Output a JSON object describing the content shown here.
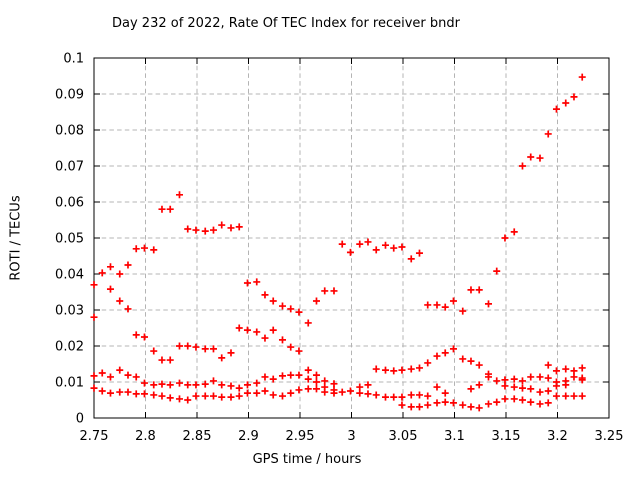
{
  "colors": {
    "background": "#ffffff",
    "border": "#000000",
    "grid": "#b4b4b4",
    "text": "#000000"
  },
  "chart_data": {
    "type": "scatter",
    "title": "Day 232 of 2022, Rate Of TEC Index for receiver bndr",
    "xlabel": "GPS time / hours",
    "ylabel": "ROTI / TECUs",
    "xlim": [
      2.75,
      3.25
    ],
    "ylim": [
      0,
      0.1
    ],
    "xticks": [
      2.75,
      2.8,
      2.85,
      2.9,
      2.95,
      3,
      3.05,
      3.1,
      3.15,
      3.2,
      3.25
    ],
    "xtick_labels": [
      "2.75",
      "2.8",
      "2.85",
      "2.9",
      "2.95",
      "3",
      "3.05",
      "3.1",
      "3.15",
      "3.2",
      "3.25"
    ],
    "yticks": [
      0,
      0.01,
      0.02,
      0.03,
      0.04,
      0.05,
      0.06,
      0.07,
      0.08,
      0.09,
      0.1
    ],
    "ytick_labels": [
      "0",
      "0.01",
      "0.02",
      "0.03",
      "0.04",
      "0.05",
      "0.06",
      "0.07",
      "0.08",
      "0.09",
      "0.1"
    ],
    "grid": true,
    "legend": "none",
    "marker": {
      "shape": "plus",
      "color": "#ff0000"
    },
    "series": [
      {
        "name": "ROTI",
        "points": [
          [
            2.75,
            0.037
          ],
          [
            2.75,
            0.028
          ],
          [
            2.75,
            0.0117
          ],
          [
            2.75,
            0.0083
          ],
          [
            2.758,
            0.0403
          ],
          [
            2.758,
            0.0125
          ],
          [
            2.758,
            0.0075
          ],
          [
            2.766,
            0.042
          ],
          [
            2.766,
            0.0358
          ],
          [
            2.766,
            0.0114
          ],
          [
            2.766,
            0.0069
          ],
          [
            2.775,
            0.04
          ],
          [
            2.775,
            0.0325
          ],
          [
            2.775,
            0.0133
          ],
          [
            2.775,
            0.0072
          ],
          [
            2.783,
            0.0425
          ],
          [
            2.783,
            0.0303
          ],
          [
            2.783,
            0.0119
          ],
          [
            2.783,
            0.0072
          ],
          [
            2.791,
            0.047
          ],
          [
            2.791,
            0.0231
          ],
          [
            2.791,
            0.0114
          ],
          [
            2.791,
            0.0067
          ],
          [
            2.799,
            0.0472
          ],
          [
            2.799,
            0.0225
          ],
          [
            2.799,
            0.0097
          ],
          [
            2.799,
            0.0067
          ],
          [
            2.808,
            0.0467
          ],
          [
            2.808,
            0.0186
          ],
          [
            2.808,
            0.0092
          ],
          [
            2.808,
            0.0064
          ],
          [
            2.816,
            0.058
          ],
          [
            2.816,
            0.0161
          ],
          [
            2.816,
            0.0094
          ],
          [
            2.816,
            0.0061
          ],
          [
            2.824,
            0.058
          ],
          [
            2.824,
            0.0161
          ],
          [
            2.824,
            0.0092
          ],
          [
            2.824,
            0.0056
          ],
          [
            2.833,
            0.062
          ],
          [
            2.833,
            0.02
          ],
          [
            2.833,
            0.0097
          ],
          [
            2.833,
            0.0053
          ],
          [
            2.841,
            0.0525
          ],
          [
            2.841,
            0.02
          ],
          [
            2.841,
            0.0092
          ],
          [
            2.841,
            0.005
          ],
          [
            2.849,
            0.0522
          ],
          [
            2.849,
            0.0197
          ],
          [
            2.849,
            0.0092
          ],
          [
            2.849,
            0.0061
          ],
          [
            2.858,
            0.0519
          ],
          [
            2.858,
            0.0192
          ],
          [
            2.858,
            0.0094
          ],
          [
            2.858,
            0.0061
          ],
          [
            2.866,
            0.0522
          ],
          [
            2.866,
            0.0192
          ],
          [
            2.866,
            0.0103
          ],
          [
            2.866,
            0.0061
          ],
          [
            2.874,
            0.0536
          ],
          [
            2.874,
            0.0167
          ],
          [
            2.874,
            0.0092
          ],
          [
            2.874,
            0.0058
          ],
          [
            2.883,
            0.0528
          ],
          [
            2.883,
            0.0181
          ],
          [
            2.883,
            0.0089
          ],
          [
            2.883,
            0.0058
          ],
          [
            2.891,
            0.0531
          ],
          [
            2.891,
            0.025
          ],
          [
            2.891,
            0.0083
          ],
          [
            2.891,
            0.0061
          ],
          [
            2.899,
            0.0375
          ],
          [
            2.899,
            0.0244
          ],
          [
            2.899,
            0.0092
          ],
          [
            2.899,
            0.0069
          ],
          [
            2.908,
            0.0378
          ],
          [
            2.908,
            0.0239
          ],
          [
            2.908,
            0.0097
          ],
          [
            2.908,
            0.0069
          ],
          [
            2.916,
            0.0342
          ],
          [
            2.916,
            0.0222
          ],
          [
            2.916,
            0.0114
          ],
          [
            2.916,
            0.0075
          ],
          [
            2.924,
            0.0325
          ],
          [
            2.924,
            0.0244
          ],
          [
            2.924,
            0.0108
          ],
          [
            2.924,
            0.0064
          ],
          [
            2.933,
            0.0311
          ],
          [
            2.933,
            0.0217
          ],
          [
            2.933,
            0.0117
          ],
          [
            2.933,
            0.0061
          ],
          [
            2.941,
            0.0303
          ],
          [
            2.941,
            0.0197
          ],
          [
            2.941,
            0.0119
          ],
          [
            2.941,
            0.0069
          ],
          [
            2.949,
            0.0294
          ],
          [
            2.949,
            0.0186
          ],
          [
            2.949,
            0.0119
          ],
          [
            2.949,
            0.0078
          ],
          [
            2.958,
            0.0264
          ],
          [
            2.958,
            0.0133
          ],
          [
            2.958,
            0.0108
          ],
          [
            2.958,
            0.0081
          ],
          [
            2.966,
            0.0325
          ],
          [
            2.966,
            0.0119
          ],
          [
            2.966,
            0.01
          ],
          [
            2.966,
            0.0081
          ],
          [
            2.974,
            0.0353
          ],
          [
            2.974,
            0.0103
          ],
          [
            2.974,
            0.0086
          ],
          [
            2.974,
            0.0072
          ],
          [
            2.983,
            0.0353
          ],
          [
            2.983,
            0.0095
          ],
          [
            2.983,
            0.0078
          ],
          [
            2.983,
            0.0069
          ],
          [
            2.991,
            0.0483
          ],
          [
            2.991,
            0.0072
          ],
          [
            2.999,
            0.046
          ],
          [
            2.999,
            0.0075
          ],
          [
            3.008,
            0.0483
          ],
          [
            3.008,
            0.0086
          ],
          [
            3.008,
            0.0069
          ],
          [
            3.016,
            0.0489
          ],
          [
            3.016,
            0.0092
          ],
          [
            3.016,
            0.0067
          ],
          [
            3.024,
            0.0467
          ],
          [
            3.024,
            0.0136
          ],
          [
            3.024,
            0.0064
          ],
          [
            3.033,
            0.048
          ],
          [
            3.033,
            0.0133
          ],
          [
            3.033,
            0.0058
          ],
          [
            3.041,
            0.0472
          ],
          [
            3.041,
            0.0131
          ],
          [
            3.041,
            0.0058
          ],
          [
            3.049,
            0.0475
          ],
          [
            3.049,
            0.0133
          ],
          [
            3.049,
            0.0058
          ],
          [
            3.049,
            0.0036
          ],
          [
            3.058,
            0.0442
          ],
          [
            3.058,
            0.0136
          ],
          [
            3.058,
            0.0064
          ],
          [
            3.058,
            0.0031
          ],
          [
            3.066,
            0.0458
          ],
          [
            3.066,
            0.0139
          ],
          [
            3.066,
            0.0064
          ],
          [
            3.066,
            0.0031
          ],
          [
            3.074,
            0.0314
          ],
          [
            3.074,
            0.0153
          ],
          [
            3.074,
            0.0061
          ],
          [
            3.074,
            0.0036
          ],
          [
            3.083,
            0.0314
          ],
          [
            3.083,
            0.0172
          ],
          [
            3.083,
            0.0086
          ],
          [
            3.083,
            0.0042
          ],
          [
            3.091,
            0.0308
          ],
          [
            3.091,
            0.0181
          ],
          [
            3.091,
            0.0069
          ],
          [
            3.091,
            0.0044
          ],
          [
            3.099,
            0.0325
          ],
          [
            3.099,
            0.0192
          ],
          [
            3.099,
            0.0042
          ],
          [
            3.108,
            0.0297
          ],
          [
            3.108,
            0.0164
          ],
          [
            3.108,
            0.0036
          ],
          [
            3.116,
            0.0356
          ],
          [
            3.116,
            0.0158
          ],
          [
            3.116,
            0.0081
          ],
          [
            3.116,
            0.0031
          ],
          [
            3.124,
            0.0356
          ],
          [
            3.124,
            0.0147
          ],
          [
            3.124,
            0.0092
          ],
          [
            3.124,
            0.0028
          ],
          [
            3.133,
            0.0317
          ],
          [
            3.133,
            0.0122
          ],
          [
            3.133,
            0.0114
          ],
          [
            3.133,
            0.0039
          ],
          [
            3.141,
            0.0408
          ],
          [
            3.141,
            0.0103
          ],
          [
            3.141,
            0.0044
          ],
          [
            3.149,
            0.05
          ],
          [
            3.149,
            0.0106
          ],
          [
            3.149,
            0.0089
          ],
          [
            3.149,
            0.0053
          ],
          [
            3.158,
            0.0517
          ],
          [
            3.158,
            0.0108
          ],
          [
            3.158,
            0.0086
          ],
          [
            3.158,
            0.0053
          ],
          [
            3.166,
            0.07
          ],
          [
            3.166,
            0.0103
          ],
          [
            3.166,
            0.0083
          ],
          [
            3.166,
            0.005
          ],
          [
            3.174,
            0.0725
          ],
          [
            3.174,
            0.0114
          ],
          [
            3.174,
            0.0081
          ],
          [
            3.174,
            0.0044
          ],
          [
            3.183,
            0.0722
          ],
          [
            3.183,
            0.0114
          ],
          [
            3.183,
            0.0072
          ],
          [
            3.183,
            0.0039
          ],
          [
            3.191,
            0.0789
          ],
          [
            3.191,
            0.0147
          ],
          [
            3.191,
            0.0111
          ],
          [
            3.191,
            0.0075
          ],
          [
            3.191,
            0.0042
          ],
          [
            3.199,
            0.0858
          ],
          [
            3.199,
            0.0131
          ],
          [
            3.199,
            0.01
          ],
          [
            3.199,
            0.0089
          ],
          [
            3.199,
            0.0061
          ],
          [
            3.208,
            0.0875
          ],
          [
            3.208,
            0.0136
          ],
          [
            3.208,
            0.0103
          ],
          [
            3.208,
            0.0092
          ],
          [
            3.208,
            0.0061
          ],
          [
            3.216,
            0.0892
          ],
          [
            3.216,
            0.0131
          ],
          [
            3.216,
            0.0114
          ],
          [
            3.216,
            0.0061
          ],
          [
            3.224,
            0.0947
          ],
          [
            3.224,
            0.0139
          ],
          [
            3.224,
            0.0111
          ],
          [
            3.224,
            0.0106
          ],
          [
            3.224,
            0.0061
          ]
        ]
      }
    ]
  }
}
